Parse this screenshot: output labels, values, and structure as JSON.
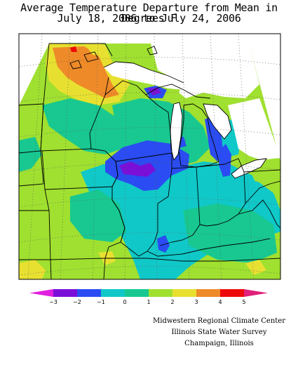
{
  "title_line1": "Average Temperature Departure from Mean in Degrees F",
  "title_line2": "July 18, 2006 to July 24, 2006",
  "legend": {
    "labels": [
      "-3",
      "-2",
      "-1",
      "0",
      "1",
      "2",
      "3",
      "4",
      "5"
    ],
    "colors": {
      "lt_-3": "#e01fe0",
      "-3_-2": "#7a10d8",
      "-2_-1": "#2a4cf2",
      "-1_0": "#10c8c8",
      "0_1": "#18c890",
      "1_2": "#a0e030",
      "2_3": "#e8e030",
      "3_4": "#ee8a28",
      "4_5": "#ee0a0a",
      "gt_5": "#e0207a"
    }
  },
  "credits": {
    "line1": "Midwestern Regional Climate Center",
    "line2": "Illinois State Water Survey",
    "line3": "Champaign, Illinois"
  }
}
